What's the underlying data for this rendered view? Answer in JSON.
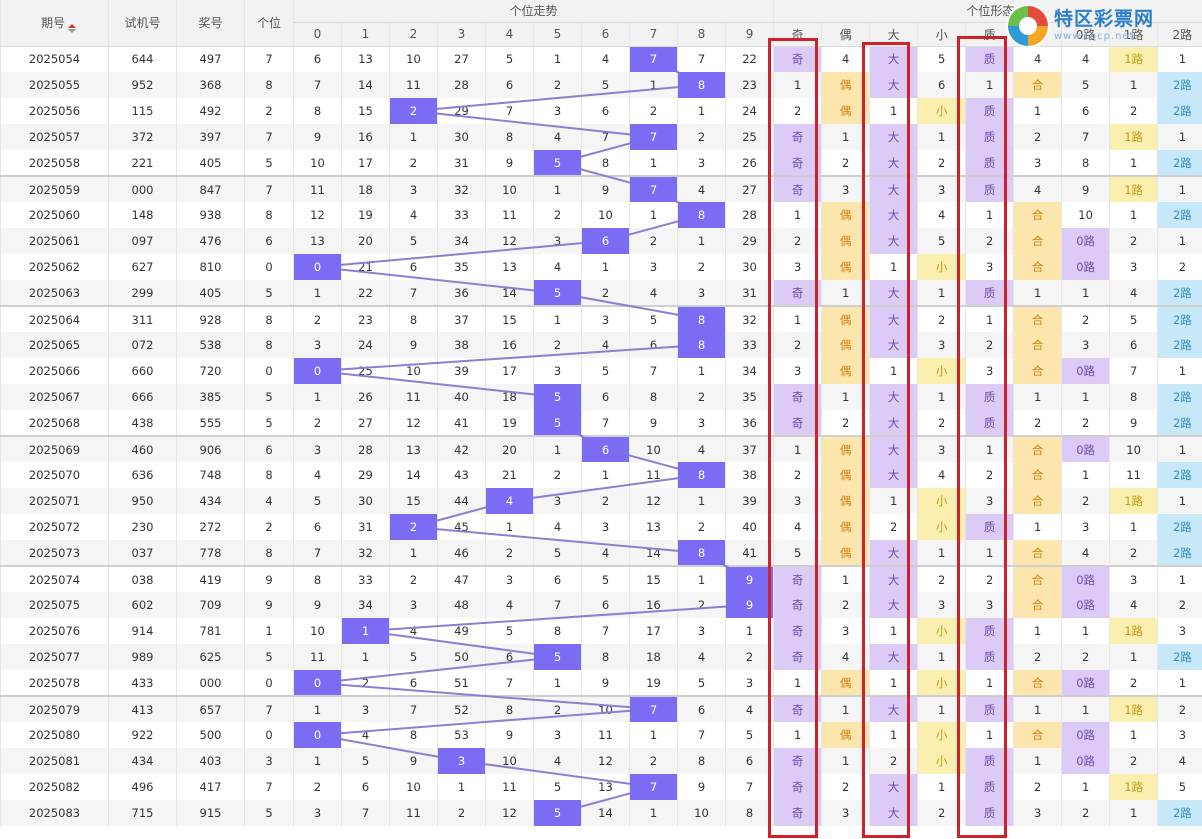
{
  "header": {
    "col_period": "期号",
    "col_trial": "试机号",
    "col_prize": "奖号",
    "col_unit": "个位",
    "group_trend": "个位走势",
    "group_shape": "个位形态",
    "digits": [
      "0",
      "1",
      "2",
      "3",
      "4",
      "5",
      "6",
      "7",
      "8",
      "9"
    ],
    "shape_cols": [
      "奇",
      "偶",
      "大",
      "小",
      "质",
      "合",
      "0路",
      "1路",
      "2路"
    ]
  },
  "watermark": {
    "name": "特区彩票网",
    "url": "www.tqcp.net",
    "icon": "lottery-logo-icon"
  },
  "colors": {
    "hit": "#7c6cf4",
    "line": "#8a7fd1",
    "purple": "#dccbf6",
    "orange": "#fde6ad",
    "blue": "#c6e8f8",
    "yellow": "#fbefb0",
    "highlight_box": "#d0202a"
  },
  "highlighted_columns": [
    "奇",
    "大",
    "质"
  ],
  "rows": [
    {
      "period": "2025054",
      "trial": "644",
      "prize": "497",
      "unit": "7",
      "miss": [
        "6",
        "13",
        "10",
        "27",
        "5",
        "1",
        "4",
        "7",
        "7",
        "22"
      ],
      "shape": [
        "奇",
        "4",
        "大",
        "5",
        "质",
        "4",
        "4",
        "1路",
        "1"
      ]
    },
    {
      "period": "2025055",
      "trial": "952",
      "prize": "368",
      "unit": "8",
      "miss": [
        "7",
        "14",
        "11",
        "28",
        "6",
        "2",
        "5",
        "1",
        "8",
        "23"
      ],
      "shape": [
        "1",
        "偶",
        "大",
        "6",
        "1",
        "合",
        "5",
        "1",
        "2路"
      ]
    },
    {
      "period": "2025056",
      "trial": "115",
      "prize": "492",
      "unit": "2",
      "miss": [
        "8",
        "15",
        "2",
        "29",
        "7",
        "3",
        "6",
        "2",
        "1",
        "24"
      ],
      "shape": [
        "2",
        "偶",
        "1",
        "小",
        "质",
        "1",
        "6",
        "2",
        "2路"
      ]
    },
    {
      "period": "2025057",
      "trial": "372",
      "prize": "397",
      "unit": "7",
      "miss": [
        "9",
        "16",
        "1",
        "30",
        "8",
        "4",
        "7",
        "7",
        "2",
        "25"
      ],
      "shape": [
        "奇",
        "1",
        "大",
        "1",
        "质",
        "2",
        "7",
        "1路",
        "1"
      ]
    },
    {
      "period": "2025058",
      "trial": "221",
      "prize": "405",
      "unit": "5",
      "miss": [
        "10",
        "17",
        "2",
        "31",
        "9",
        "5",
        "8",
        "1",
        "3",
        "26"
      ],
      "shape": [
        "奇",
        "2",
        "大",
        "2",
        "质",
        "3",
        "8",
        "1",
        "2路"
      ]
    },
    {
      "period": "2025059",
      "trial": "000",
      "prize": "847",
      "unit": "7",
      "miss": [
        "11",
        "18",
        "3",
        "32",
        "10",
        "1",
        "9",
        "7",
        "4",
        "27"
      ],
      "shape": [
        "奇",
        "3",
        "大",
        "3",
        "质",
        "4",
        "9",
        "1路",
        "1"
      ]
    },
    {
      "period": "2025060",
      "trial": "148",
      "prize": "938",
      "unit": "8",
      "miss": [
        "12",
        "19",
        "4",
        "33",
        "11",
        "2",
        "10",
        "1",
        "8",
        "28"
      ],
      "shape": [
        "1",
        "偶",
        "大",
        "4",
        "1",
        "合",
        "10",
        "1",
        "2路"
      ]
    },
    {
      "period": "2025061",
      "trial": "097",
      "prize": "476",
      "unit": "6",
      "miss": [
        "13",
        "20",
        "5",
        "34",
        "12",
        "3",
        "6",
        "2",
        "1",
        "29"
      ],
      "shape": [
        "2",
        "偶",
        "大",
        "5",
        "2",
        "合",
        "0路",
        "2",
        "1"
      ]
    },
    {
      "period": "2025062",
      "trial": "627",
      "prize": "810",
      "unit": "0",
      "miss": [
        "0",
        "21",
        "6",
        "35",
        "13",
        "4",
        "1",
        "3",
        "2",
        "30"
      ],
      "shape": [
        "3",
        "偶",
        "1",
        "小",
        "3",
        "合",
        "0路",
        "3",
        "2"
      ]
    },
    {
      "period": "2025063",
      "trial": "299",
      "prize": "405",
      "unit": "5",
      "miss": [
        "1",
        "22",
        "7",
        "36",
        "14",
        "5",
        "2",
        "4",
        "3",
        "31"
      ],
      "shape": [
        "奇",
        "1",
        "大",
        "1",
        "质",
        "1",
        "1",
        "4",
        "2路"
      ]
    },
    {
      "period": "2025064",
      "trial": "311",
      "prize": "928",
      "unit": "8",
      "miss": [
        "2",
        "23",
        "8",
        "37",
        "15",
        "1",
        "3",
        "5",
        "8",
        "32"
      ],
      "shape": [
        "1",
        "偶",
        "大",
        "2",
        "1",
        "合",
        "2",
        "5",
        "2路"
      ]
    },
    {
      "period": "2025065",
      "trial": "072",
      "prize": "538",
      "unit": "8",
      "miss": [
        "3",
        "24",
        "9",
        "38",
        "16",
        "2",
        "4",
        "6",
        "8",
        "33"
      ],
      "shape": [
        "2",
        "偶",
        "大",
        "3",
        "2",
        "合",
        "3",
        "6",
        "2路"
      ]
    },
    {
      "period": "2025066",
      "trial": "660",
      "prize": "720",
      "unit": "0",
      "miss": [
        "0",
        "25",
        "10",
        "39",
        "17",
        "3",
        "5",
        "7",
        "1",
        "34"
      ],
      "shape": [
        "3",
        "偶",
        "1",
        "小",
        "3",
        "合",
        "0路",
        "7",
        "1"
      ]
    },
    {
      "period": "2025067",
      "trial": "666",
      "prize": "385",
      "unit": "5",
      "miss": [
        "1",
        "26",
        "11",
        "40",
        "18",
        "5",
        "6",
        "8",
        "2",
        "35"
      ],
      "shape": [
        "奇",
        "1",
        "大",
        "1",
        "质",
        "1",
        "1",
        "8",
        "2路"
      ]
    },
    {
      "period": "2025068",
      "trial": "438",
      "prize": "555",
      "unit": "5",
      "miss": [
        "2",
        "27",
        "12",
        "41",
        "19",
        "5",
        "7",
        "9",
        "3",
        "36"
      ],
      "shape": [
        "奇",
        "2",
        "大",
        "2",
        "质",
        "2",
        "2",
        "9",
        "2路"
      ]
    },
    {
      "period": "2025069",
      "trial": "460",
      "prize": "906",
      "unit": "6",
      "miss": [
        "3",
        "28",
        "13",
        "42",
        "20",
        "1",
        "6",
        "10",
        "4",
        "37"
      ],
      "shape": [
        "1",
        "偶",
        "大",
        "3",
        "1",
        "合",
        "0路",
        "10",
        "1"
      ]
    },
    {
      "period": "2025070",
      "trial": "636",
      "prize": "748",
      "unit": "8",
      "miss": [
        "4",
        "29",
        "14",
        "43",
        "21",
        "2",
        "1",
        "11",
        "8",
        "38"
      ],
      "shape": [
        "2",
        "偶",
        "大",
        "4",
        "2",
        "合",
        "1",
        "11",
        "2路"
      ]
    },
    {
      "period": "2025071",
      "trial": "950",
      "prize": "434",
      "unit": "4",
      "miss": [
        "5",
        "30",
        "15",
        "44",
        "4",
        "3",
        "2",
        "12",
        "1",
        "39"
      ],
      "shape": [
        "3",
        "偶",
        "1",
        "小",
        "3",
        "合",
        "2",
        "1路",
        "1"
      ]
    },
    {
      "period": "2025072",
      "trial": "230",
      "prize": "272",
      "unit": "2",
      "miss": [
        "6",
        "31",
        "2",
        "45",
        "1",
        "4",
        "3",
        "13",
        "2",
        "40"
      ],
      "shape": [
        "4",
        "偶",
        "2",
        "小",
        "质",
        "1",
        "3",
        "1",
        "2路"
      ]
    },
    {
      "period": "2025073",
      "trial": "037",
      "prize": "778",
      "unit": "8",
      "miss": [
        "7",
        "32",
        "1",
        "46",
        "2",
        "5",
        "4",
        "14",
        "8",
        "41"
      ],
      "shape": [
        "5",
        "偶",
        "大",
        "1",
        "1",
        "合",
        "4",
        "2",
        "2路"
      ]
    },
    {
      "period": "2025074",
      "trial": "038",
      "prize": "419",
      "unit": "9",
      "miss": [
        "8",
        "33",
        "2",
        "47",
        "3",
        "6",
        "5",
        "15",
        "1",
        "9"
      ],
      "shape": [
        "奇",
        "1",
        "大",
        "2",
        "2",
        "合",
        "0路",
        "3",
        "1"
      ]
    },
    {
      "period": "2025075",
      "trial": "602",
      "prize": "709",
      "unit": "9",
      "miss": [
        "9",
        "34",
        "3",
        "48",
        "4",
        "7",
        "6",
        "16",
        "2",
        "9"
      ],
      "shape": [
        "奇",
        "2",
        "大",
        "3",
        "3",
        "合",
        "0路",
        "4",
        "2"
      ]
    },
    {
      "period": "2025076",
      "trial": "914",
      "prize": "781",
      "unit": "1",
      "miss": [
        "10",
        "1",
        "4",
        "49",
        "5",
        "8",
        "7",
        "17",
        "3",
        "1"
      ],
      "shape": [
        "奇",
        "3",
        "1",
        "小",
        "质",
        "1",
        "1",
        "1路",
        "3"
      ]
    },
    {
      "period": "2025077",
      "trial": "989",
      "prize": "625",
      "unit": "5",
      "miss": [
        "11",
        "1",
        "5",
        "50",
        "6",
        "5",
        "8",
        "18",
        "4",
        "2"
      ],
      "shape": [
        "奇",
        "4",
        "大",
        "1",
        "质",
        "2",
        "2",
        "1",
        "2路"
      ]
    },
    {
      "period": "2025078",
      "trial": "433",
      "prize": "000",
      "unit": "0",
      "miss": [
        "0",
        "2",
        "6",
        "51",
        "7",
        "1",
        "9",
        "19",
        "5",
        "3"
      ],
      "shape": [
        "1",
        "偶",
        "1",
        "小",
        "1",
        "合",
        "0路",
        "2",
        "1"
      ]
    },
    {
      "period": "2025079",
      "trial": "413",
      "prize": "657",
      "unit": "7",
      "miss": [
        "1",
        "3",
        "7",
        "52",
        "8",
        "2",
        "10",
        "7",
        "6",
        "4"
      ],
      "shape": [
        "奇",
        "1",
        "大",
        "1",
        "质",
        "1",
        "1",
        "1路",
        "2"
      ]
    },
    {
      "period": "2025080",
      "trial": "922",
      "prize": "500",
      "unit": "0",
      "miss": [
        "0",
        "4",
        "8",
        "53",
        "9",
        "3",
        "11",
        "1",
        "7",
        "5"
      ],
      "shape": [
        "1",
        "偶",
        "1",
        "小",
        "1",
        "合",
        "0路",
        "1",
        "3"
      ]
    },
    {
      "period": "2025081",
      "trial": "434",
      "prize": "403",
      "unit": "3",
      "miss": [
        "1",
        "5",
        "9",
        "3",
        "10",
        "4",
        "12",
        "2",
        "8",
        "6"
      ],
      "shape": [
        "奇",
        "1",
        "2",
        "小",
        "质",
        "1",
        "0路",
        "2",
        "4"
      ]
    },
    {
      "period": "2025082",
      "trial": "496",
      "prize": "417",
      "unit": "7",
      "miss": [
        "2",
        "6",
        "10",
        "1",
        "11",
        "5",
        "13",
        "7",
        "9",
        "7"
      ],
      "shape": [
        "奇",
        "2",
        "大",
        "1",
        "质",
        "2",
        "1",
        "1路",
        "5"
      ]
    },
    {
      "period": "2025083",
      "trial": "715",
      "prize": "915",
      "unit": "5",
      "miss": [
        "3",
        "7",
        "11",
        "2",
        "12",
        "5",
        "14",
        "1",
        "10",
        "8"
      ],
      "shape": [
        "奇",
        "3",
        "大",
        "2",
        "质",
        "3",
        "2",
        "1",
        "2路"
      ]
    }
  ]
}
